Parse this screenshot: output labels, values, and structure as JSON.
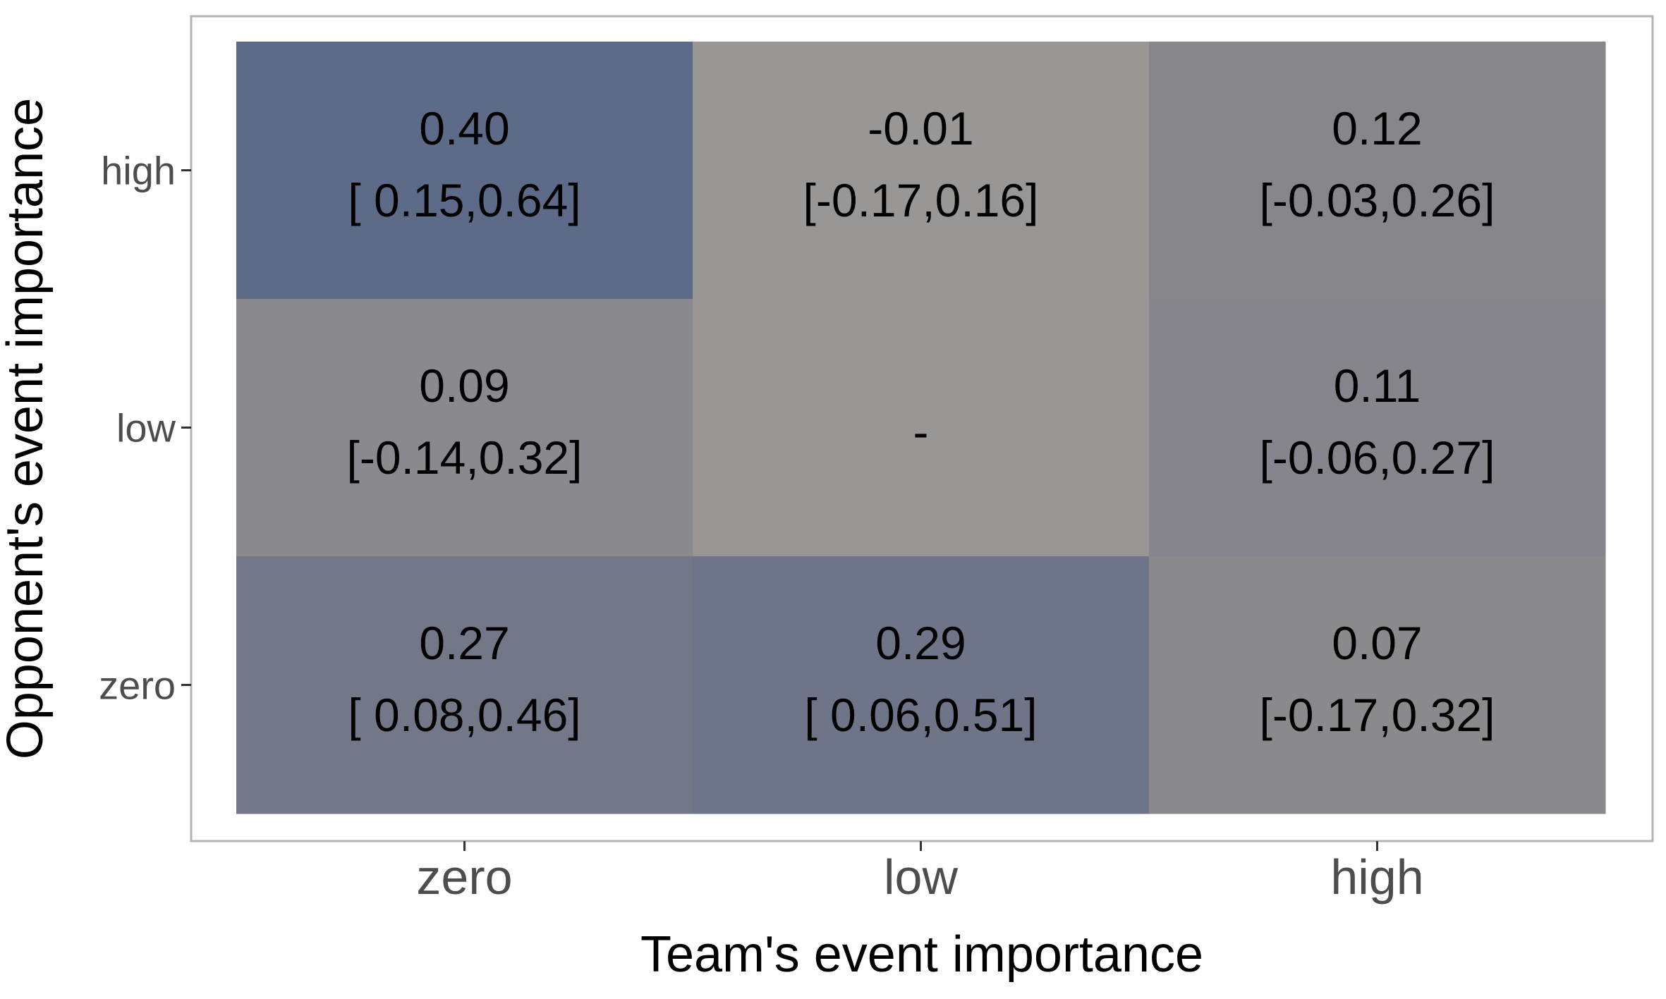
{
  "chart_data": {
    "type": "heatmap",
    "xlabel": "Team's event importance",
    "ylabel": "Opponent's event importance",
    "x_categories": [
      "zero",
      "low",
      "high"
    ],
    "y_categories": [
      "zero",
      "low",
      "high"
    ],
    "grid": false,
    "cells": [
      {
        "x": "zero",
        "y": "high",
        "value": 0.4,
        "value_label": "0.40",
        "ci_label": "[ 0.15,0.64]",
        "color": "#5d6a88"
      },
      {
        "x": "low",
        "y": "high",
        "value": -0.01,
        "value_label": "-0.01",
        "ci_label": "[-0.17,0.16]",
        "color": "#999793"
      },
      {
        "x": "high",
        "y": "high",
        "value": 0.12,
        "value_label": "0.12",
        "ci_label": "[-0.03,0.26]",
        "color": "#86868b"
      },
      {
        "x": "zero",
        "y": "low",
        "value": 0.09,
        "value_label": "0.09",
        "ci_label": "[-0.14,0.32]",
        "color": "#8a8a8e"
      },
      {
        "x": "low",
        "y": "low",
        "value": null,
        "value_label": "-",
        "ci_label": "",
        "color": "#999594"
      },
      {
        "x": "high",
        "y": "low",
        "value": 0.11,
        "value_label": "0.11",
        "ci_label": "[-0.06,0.27]",
        "color": "#86858c"
      },
      {
        "x": "zero",
        "y": "zero",
        "value": 0.27,
        "value_label": "0.27",
        "ci_label": "[ 0.08,0.46]",
        "color": "#737889"
      },
      {
        "x": "low",
        "y": "zero",
        "value": 0.29,
        "value_label": "0.29",
        "ci_label": "[ 0.06,0.51]",
        "color": "#6f7588"
      },
      {
        "x": "high",
        "y": "zero",
        "value": 0.07,
        "value_label": "0.07",
        "ci_label": "[-0.17,0.32]",
        "color": "#8a8a8c"
      }
    ]
  }
}
